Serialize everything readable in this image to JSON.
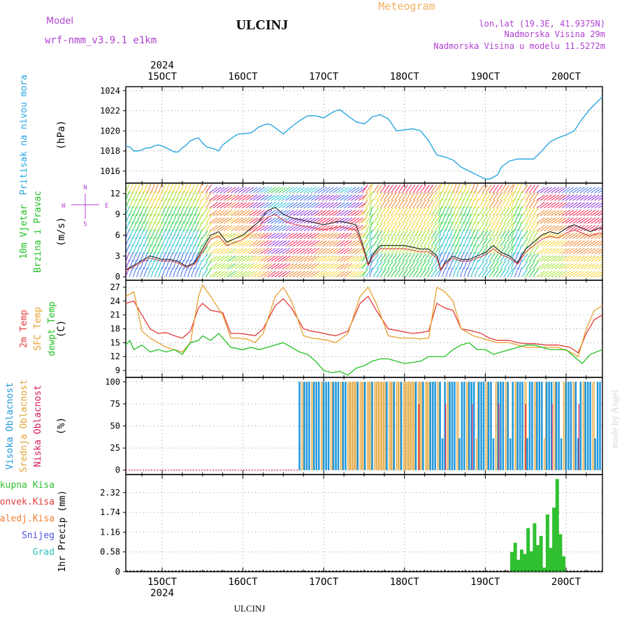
{
  "header": {
    "model_label": "Model",
    "model_name": "wrf-nmm_v3.9.1 e1km",
    "station": "ULCINJ",
    "subtitle": "Meteogram",
    "lonlat": "lon,lat (19.3E, 41.9375N)",
    "elevation": "Nadmorska Visina 29m",
    "model_elevation": "Nadmorska Visina u modelu 11.5272m",
    "watermark": "made by Angel",
    "footer_station": "ULCINJ"
  },
  "colors": {
    "pressure": "#2aa7e0",
    "temp2m": "#e23b3b",
    "sfc_temp": "#e8a030",
    "dewpoint": "#22c022",
    "cloud_high": "#1f98dc",
    "cloud_mid": "#e2a53a",
    "cloud_low": "#d41a5a",
    "precip": "#30c030",
    "header_purple": "#b040d0",
    "header_orange": "#f0b060"
  },
  "chart_data": [
    {
      "type": "line",
      "panel": "pressure",
      "ylabel_lines": [
        "Pritisak na nivou mora"
      ],
      "unit": "(hPa)",
      "ylim": [
        1014.8,
        1024.4
      ],
      "yticks": [
        "1024",
        "1022",
        "1020",
        "1018",
        "1016"
      ],
      "ytick_values": [
        1024,
        1022,
        1020,
        1018,
        1016
      ],
      "x_start": 14.55,
      "x_end": 20.45,
      "top_axis": {
        "year": "2024",
        "days": [
          "15OCT",
          "16OCT",
          "17OCT",
          "18OCT",
          "19OCT",
          "20OCT"
        ],
        "day_values": [
          15,
          16,
          17,
          18,
          19,
          20
        ]
      },
      "grid": true,
      "series": [
        {
          "name": "",
          "x": [
            14.55,
            14.6,
            14.65,
            14.7,
            14.75,
            14.8,
            14.85,
            14.9,
            14.95,
            15.0,
            15.05,
            15.1,
            15.15,
            15.2,
            15.25,
            15.3,
            15.35,
            15.4,
            15.45,
            15.5,
            15.55,
            15.6,
            15.65,
            15.7,
            15.75,
            15.8,
            15.85,
            15.9,
            15.95,
            16.0,
            16.1,
            16.2,
            16.3,
            16.35,
            16.4,
            16.5,
            16.6,
            16.7,
            16.8,
            16.9,
            17.0,
            17.1,
            17.15,
            17.2,
            17.3,
            17.4,
            17.5,
            17.55,
            17.6,
            17.7,
            17.8,
            17.9,
            18.0,
            18.1,
            18.2,
            18.3,
            18.4,
            18.5,
            18.6,
            18.7,
            18.8,
            18.9,
            19.0,
            19.05,
            19.1,
            19.15,
            19.2,
            19.3,
            19.4,
            19.5,
            19.6,
            19.7,
            19.8,
            19.9,
            20.0,
            20.1,
            20.2,
            20.3,
            20.4,
            20.45
          ],
          "values": [
            1018.5,
            1018.4,
            1018.0,
            1018.0,
            1018.1,
            1018.3,
            1018.3,
            1018.5,
            1018.6,
            1018.5,
            1018.3,
            1018.1,
            1017.9,
            1017.9,
            1018.3,
            1018.6,
            1019.0,
            1019.2,
            1019.3,
            1018.8,
            1018.4,
            1018.3,
            1018.2,
            1018.0,
            1018.6,
            1018.9,
            1019.2,
            1019.5,
            1019.7,
            1019.7,
            1019.8,
            1020.4,
            1020.7,
            1020.6,
            1020.3,
            1019.7,
            1020.4,
            1021.0,
            1021.5,
            1021.5,
            1021.3,
            1021.8,
            1022.0,
            1022.1,
            1021.5,
            1020.9,
            1020.7,
            1021.0,
            1021.4,
            1021.6,
            1021.2,
            1020.0,
            1020.1,
            1020.2,
            1020.0,
            1019.0,
            1017.6,
            1017.4,
            1017.1,
            1016.4,
            1016.0,
            1015.6,
            1015.2,
            1015.2,
            1015.4,
            1015.6,
            1016.4,
            1017.0,
            1017.2,
            1017.2,
            1017.2,
            1018.0,
            1018.9,
            1019.3,
            1019.6,
            1020.0,
            1021.2,
            1022.2,
            1023.0,
            1023.4
          ]
        }
      ]
    },
    {
      "type": "line",
      "panel": "wind",
      "ylabel_lines": [
        "10m Vjetar",
        "Brzina i Pravac"
      ],
      "unit": "(m/s)",
      "compass": {
        "west": "W",
        "east": "E",
        "north": "N",
        "south": "S"
      },
      "ylim": [
        -0.5,
        13.5
      ],
      "yticks": [
        "12",
        "9",
        "6",
        "3",
        "0"
      ],
      "ytick_values": [
        12,
        9,
        6,
        3,
        0
      ],
      "grid": true,
      "series": [
        {
          "name": "",
          "x": [
            14.55,
            14.7,
            14.85,
            15.0,
            15.1,
            15.2,
            15.3,
            15.4,
            15.5,
            15.6,
            15.7,
            15.8,
            16.0,
            16.1,
            16.2,
            16.3,
            16.4,
            16.5,
            16.6,
            16.8,
            17.0,
            17.2,
            17.4,
            17.5,
            17.55,
            17.6,
            17.7,
            17.8,
            18.0,
            18.2,
            18.3,
            18.4,
            18.45,
            18.5,
            18.6,
            18.7,
            18.8,
            19.0,
            19.1,
            19.2,
            19.3,
            19.4,
            19.5,
            19.6,
            19.7,
            19.8,
            19.9,
            20.0,
            20.1,
            20.2,
            20.3,
            20.4,
            20.45
          ],
          "values": [
            1,
            2,
            3,
            2.5,
            2.5,
            2.2,
            1.5,
            2,
            4,
            6,
            6.5,
            5,
            6,
            7,
            8,
            9.5,
            10,
            9,
            8.5,
            8,
            7.5,
            8,
            7.5,
            4,
            1.8,
            3,
            4.5,
            4.5,
            4.5,
            4,
            4,
            3,
            1,
            2,
            3,
            2.5,
            2.5,
            3.5,
            4.5,
            3.5,
            3,
            2,
            4,
            5,
            6,
            6.5,
            6.2,
            7,
            7.5,
            7,
            6.5,
            7,
            7
          ]
        }
      ],
      "arrow_colors": [
        "#8a2be2",
        "#3a6df0",
        "#1fbfd0",
        "#22d040",
        "#a0e020",
        "#f0d020",
        "#f08020",
        "#f02050"
      ]
    },
    {
      "type": "line",
      "panel": "temperature",
      "ylabel_lines": [
        "2m Temp",
        "SFC Temp",
        "dewpt Temp"
      ],
      "unit": "(C)",
      "ylim": [
        7.5,
        28.5
      ],
      "yticks": [
        "27",
        "24",
        "21",
        "18",
        "15",
        "12",
        "9"
      ],
      "ytick_values": [
        27,
        24,
        21,
        18,
        15,
        12,
        9
      ],
      "grid": true,
      "series": [
        {
          "name": "2m Temp",
          "x": [
            14.55,
            14.65,
            14.75,
            14.85,
            14.95,
            15.05,
            15.15,
            15.25,
            15.35,
            15.45,
            15.5,
            15.6,
            15.75,
            15.85,
            15.95,
            16.05,
            16.15,
            16.25,
            16.4,
            16.5,
            16.6,
            16.75,
            16.85,
            16.95,
            17.05,
            17.15,
            17.3,
            17.45,
            17.55,
            17.65,
            17.8,
            17.95,
            18.1,
            18.2,
            18.3,
            18.4,
            18.5,
            18.6,
            18.7,
            18.85,
            18.95,
            19.05,
            19.15,
            19.3,
            19.4,
            19.5,
            19.6,
            19.75,
            19.9,
            20.05,
            20.15,
            20.25,
            20.35,
            20.45
          ],
          "values": [
            23.5,
            24,
            21,
            18,
            17,
            17.2,
            16.5,
            16,
            17.5,
            22.5,
            23.5,
            22,
            21.5,
            17,
            17,
            16.8,
            16.5,
            18,
            23,
            24.5,
            22.5,
            18,
            17.5,
            17.2,
            16.8,
            16.5,
            17.5,
            23.5,
            25,
            22,
            18,
            17.5,
            17,
            17.2,
            17.5,
            23.5,
            22.5,
            22,
            18,
            17.5,
            17,
            16,
            15.5,
            15.5,
            15,
            14.8,
            14.8,
            14.5,
            14.5,
            14,
            12.8,
            17,
            20,
            21
          ]
        },
        {
          "name": "SFC Temp",
          "x": [
            14.55,
            14.65,
            14.75,
            14.85,
            14.95,
            15.05,
            15.15,
            15.25,
            15.35,
            15.45,
            15.5,
            15.6,
            15.75,
            15.85,
            15.95,
            16.05,
            16.15,
            16.25,
            16.4,
            16.5,
            16.6,
            16.75,
            16.85,
            16.95,
            17.05,
            17.15,
            17.3,
            17.45,
            17.55,
            17.65,
            17.8,
            17.95,
            18.1,
            18.2,
            18.3,
            18.4,
            18.5,
            18.6,
            18.7,
            18.85,
            18.95,
            19.05,
            19.15,
            19.3,
            19.4,
            19.5,
            19.6,
            19.75,
            19.9,
            20.05,
            20.15,
            20.25,
            20.35,
            20.45
          ],
          "values": [
            25,
            26,
            17.5,
            16,
            15,
            14,
            13.5,
            13,
            15,
            25,
            27.5,
            25,
            21,
            16,
            16,
            15.8,
            15,
            17,
            25,
            27,
            24,
            16.5,
            16,
            15.8,
            15.5,
            15,
            17,
            25,
            27,
            23.5,
            16.5,
            16,
            16,
            15.8,
            16,
            27,
            26,
            24,
            18,
            16.5,
            16,
            15.5,
            15,
            15,
            14.5,
            14,
            14,
            14,
            14,
            13,
            12,
            18,
            22,
            23
          ]
        },
        {
          "name": "dewpt Temp",
          "x": [
            14.55,
            14.6,
            14.65,
            14.75,
            14.85,
            14.95,
            15.05,
            15.15,
            15.25,
            15.35,
            15.45,
            15.5,
            15.55,
            15.6,
            15.7,
            15.8,
            15.85,
            16.0,
            16.1,
            16.2,
            16.3,
            16.4,
            16.5,
            16.6,
            16.7,
            16.8,
            16.9,
            17.0,
            17.1,
            17.2,
            17.3,
            17.4,
            17.5,
            17.6,
            17.7,
            17.8,
            18.0,
            18.2,
            18.3,
            18.4,
            18.5,
            18.6,
            18.7,
            18.8,
            18.9,
            19.0,
            19.1,
            19.2,
            19.3,
            19.4,
            19.5,
            19.6,
            19.8,
            20.0,
            20.1,
            20.2,
            20.3,
            20.45
          ],
          "values": [
            14.5,
            15.5,
            13.5,
            14.5,
            13,
            13.5,
            13,
            13.5,
            12.5,
            15,
            15.5,
            16.5,
            16,
            15.5,
            17,
            15,
            14,
            13.5,
            14,
            13.5,
            14,
            14.5,
            15,
            14,
            13,
            12.5,
            11,
            9,
            8.5,
            8.8,
            8,
            9.5,
            10,
            11,
            11.5,
            11.5,
            10.5,
            11,
            12,
            12,
            12,
            13.5,
            14.5,
            15,
            13.5,
            13.5,
            12.5,
            13,
            13.5,
            14,
            14.5,
            14.5,
            13.5,
            13.5,
            12,
            10.5,
            12.5,
            13.5
          ]
        }
      ]
    },
    {
      "type": "bar",
      "panel": "cloud",
      "ylabel_lines": [
        "Visoka Oblacnost",
        "Srednja Oblacnost",
        "Niska Oblacnost"
      ],
      "unit": "(%)",
      "ylim": [
        -5,
        105
      ],
      "yticks": [
        "100",
        "75",
        "50",
        "25",
        "0"
      ],
      "ytick_values": [
        100,
        75,
        50,
        25,
        0
      ],
      "grid": true,
      "series": [
        {
          "name": "Visoka Oblacnost",
          "description_range": [
            16.7,
            20.45
          ],
          "value": 100
        },
        {
          "name": "Srednja Oblacnost",
          "description_range": [
            16.7,
            20.45
          ],
          "value": 100
        },
        {
          "name": "Niska Oblacnost",
          "description_range": [
            18.05,
            20.45
          ],
          "value": 75
        }
      ]
    },
    {
      "type": "bar",
      "panel": "precip",
      "ylabel_lines": [
        "1hr Precip"
      ],
      "unit": "(mm)",
      "legend": [
        "Ukupna Kisa",
        "Konvek.Kisa",
        "Zaledj.Kisa",
        "Snijeg",
        "Grad"
      ],
      "legend_colors": [
        "#30c030",
        "#e23b3b",
        "#f08030",
        "#5050e0",
        "#30c0c0"
      ],
      "ylim": [
        0,
        2.85
      ],
      "yticks": [
        "2.32",
        "1.74",
        "1.16",
        "0.58",
        "0"
      ],
      "ytick_values": [
        2.32,
        1.74,
        1.16,
        0.58,
        0
      ],
      "bottom_axis": {
        "days": [
          "15OCT",
          "16OCT",
          "17OCT",
          "18OCT",
          "19OCT",
          "20OCT"
        ],
        "day_values": [
          15,
          16,
          17,
          18,
          19,
          20
        ],
        "year": "2024"
      },
      "grid": true,
      "x": [
        19.33,
        19.37,
        19.41,
        19.45,
        19.49,
        19.53,
        19.57,
        19.61,
        19.65,
        19.69,
        19.73,
        19.77,
        19.81,
        19.85,
        19.89,
        19.93,
        19.97
      ],
      "values": [
        0.58,
        0.85,
        0.35,
        0.65,
        0.52,
        1.28,
        0.6,
        1.42,
        0.78,
        1.05,
        0.12,
        1.68,
        0.7,
        1.88,
        2.72,
        1.1,
        0.45
      ]
    }
  ]
}
